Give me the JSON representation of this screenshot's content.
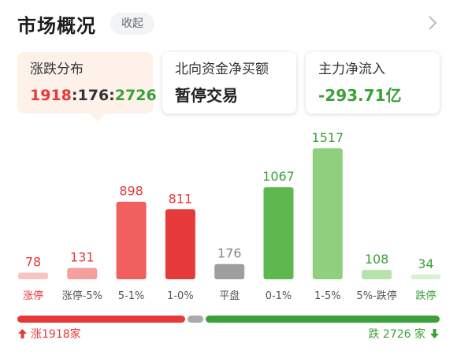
{
  "header": {
    "title": "市场概况",
    "collapse_label": "收起"
  },
  "cards": {
    "distribution": {
      "label": "涨跌分布",
      "up": "1918",
      "flat": "176",
      "down": "2726",
      "sep": ":"
    },
    "northbound": {
      "label": "北向资金净买额",
      "value": "暂停交易"
    },
    "main_flow": {
      "label": "主力净流入",
      "value": "-293.71亿"
    }
  },
  "chart_data": {
    "type": "bar",
    "categories": [
      "涨停",
      "涨停-5%",
      "5-1%",
      "1-0%",
      "平盘",
      "0-1%",
      "1-5%",
      "5%-跌停",
      "跌停"
    ],
    "values": [
      78,
      131,
      898,
      811,
      176,
      1067,
      1517,
      108,
      34
    ],
    "bar_colors": [
      "#f7c4c2",
      "#f3a09c",
      "#f0605e",
      "#e63a3a",
      "#9e9e9e",
      "#5fb74f",
      "#8fd07f",
      "#b7e3aa",
      "#d9f0d0"
    ],
    "label_colors": [
      "#e63a3a",
      "#e63a3a",
      "#e63a3a",
      "#e63a3a",
      "#888888",
      "#3aa13a",
      "#3aa13a",
      "#3aa13a",
      "#3aa13a"
    ],
    "category_colors": [
      "#e63a3a",
      "#555555",
      "#555555",
      "#555555",
      "#555555",
      "#555555",
      "#555555",
      "#555555",
      "#3aa13a"
    ],
    "ylim": [
      0,
      1517
    ]
  },
  "distribution_bar": {
    "up": 1918,
    "flat": 176,
    "down": 2726
  },
  "footer": {
    "up_text": "涨1918家",
    "down_text": "跌 2726 家"
  },
  "colors": {
    "up": "#e63a3a",
    "down": "#3aa13a",
    "flat": "#aaaaaa",
    "active_card_bg": "#fdf1ea"
  },
  "icons": {
    "chevron": "chevron-right-icon",
    "up_arrow": "arrow-up-icon",
    "down_arrow": "arrow-down-icon"
  }
}
